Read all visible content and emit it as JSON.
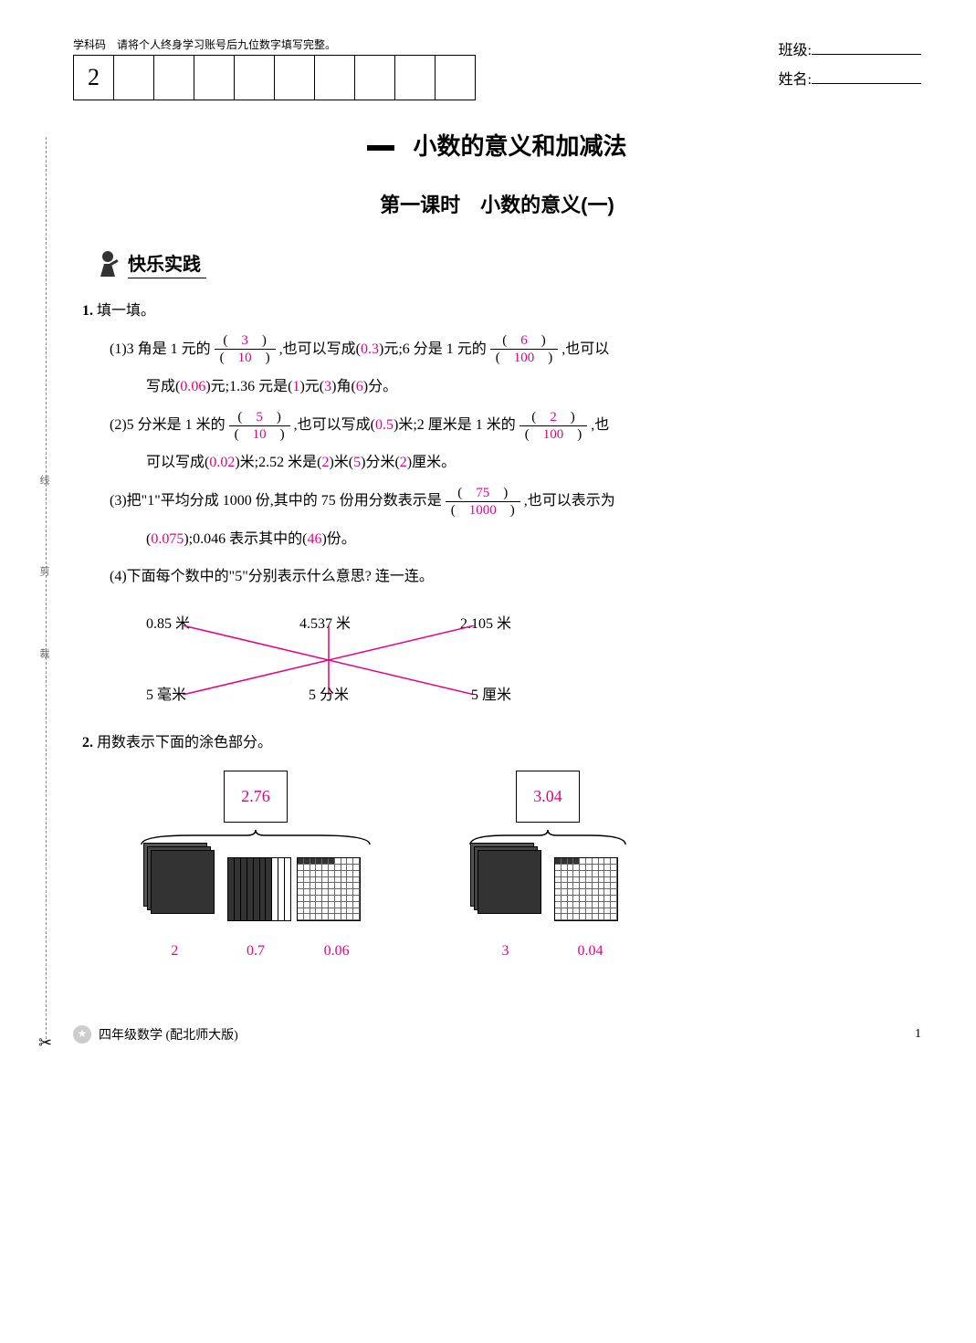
{
  "header": {
    "xuekema_label": "学科码",
    "xuekema_hint": "请将个人终身学习账号后九位数字填写完整。",
    "first_box": "2",
    "class_label": "班级:",
    "name_label": "姓名:"
  },
  "unit_title": "小数的意义和加减法",
  "lesson_title": "第一课时　小数的意义(一)",
  "section_title": "快乐实践",
  "q1": {
    "num": "1.",
    "title": "填一填。",
    "p1": {
      "label": "(1)",
      "t1": "3 角是 1 元的",
      "f1_num": "3",
      "f1_den": "10",
      "t2": ",也可以写成(",
      "a1": "0.3",
      "t3": ")元;6 分是 1 元的",
      "f2_num": "6",
      "f2_den": "100",
      "t4": ",也可以",
      "line2_pre": "写成(",
      "a2": "0.06",
      "t5": ")元;1.36 元是(",
      "a3": "1",
      "t6": ")元(",
      "a4": "3",
      "t7": ")角(",
      "a5": "6",
      "t8": ")分。"
    },
    "p2": {
      "label": "(2)",
      "t1": "5 分米是 1 米的",
      "f1_num": "5",
      "f1_den": "10",
      "t2": ",也可以写成(",
      "a1": "0.5",
      "t3": ")米;2 厘米是 1 米的",
      "f2_num": "2",
      "f2_den": "100",
      "t4": ",也",
      "line2_pre": "可以写成(",
      "a2": "0.02",
      "t5": ")米;2.52 米是(",
      "a3": "2",
      "t6": ")米(",
      "a4": "5",
      "t7": ")分米(",
      "a5": "2",
      "t8": ")厘米。"
    },
    "p3": {
      "label": "(3)",
      "t1": "把\"1\"平均分成 1000 份,其中的 75 份用分数表示是",
      "f1_num": "75",
      "f1_den": "1000",
      "t2": ",也可以表示为",
      "line2_pre": "(",
      "a1": "0.075",
      "t3": ");0.046 表示其中的(",
      "a2": "46",
      "t4": ")份。"
    },
    "p4": {
      "label": "(4)",
      "t1": "下面每个数中的\"5\"分别表示什么意思? 连一连。",
      "top": [
        "0.85 米",
        "4.537 米",
        "2.105 米"
      ],
      "bot": [
        "5 毫米",
        "5 分米",
        "5 厘米"
      ],
      "line_color": "#e6007e"
    }
  },
  "q2": {
    "num": "2.",
    "title": "用数表示下面的涂色部分。",
    "g1": {
      "total": "2.76",
      "bars_filled": 7,
      "grid_filled": 6,
      "vals": [
        "2",
        "0.7",
        "0.06"
      ]
    },
    "g2": {
      "total": "3.04",
      "grid_filled": 4,
      "vals": [
        "3",
        "0.04"
      ]
    }
  },
  "cut_labels": {
    "a": "线",
    "b": "剪",
    "c": "裁"
  },
  "footer": {
    "text": "四年级数学 (配北师大版)",
    "page": "1"
  },
  "colors": {
    "answer": "#e6007e",
    "text": "#000000"
  }
}
